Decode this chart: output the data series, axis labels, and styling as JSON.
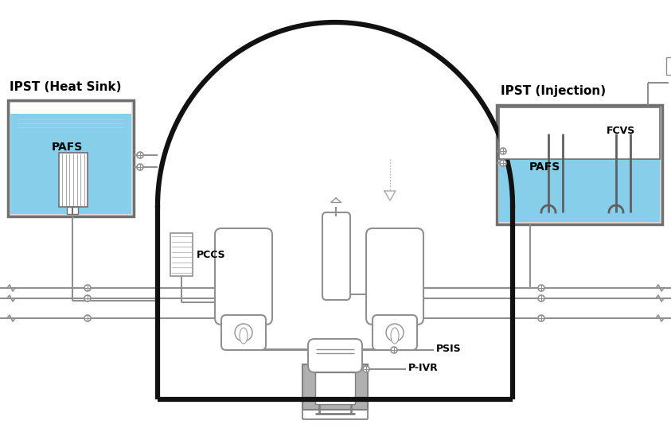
{
  "bg_color": "#ffffff",
  "containment_color": "#111111",
  "tank_border_color": "#707070",
  "water_color": "#87CEEB",
  "pipe_color": "#909090",
  "dark_pipe_color": "#606060",
  "label_left": "IPST (Heat Sink)",
  "label_right": "IPST (Injection)",
  "label_pafs": "PAFS",
  "label_fcvs": "FCVS",
  "label_pccs": "PCCS",
  "label_psis": "PSIS",
  "label_pivr": "P-IVR"
}
